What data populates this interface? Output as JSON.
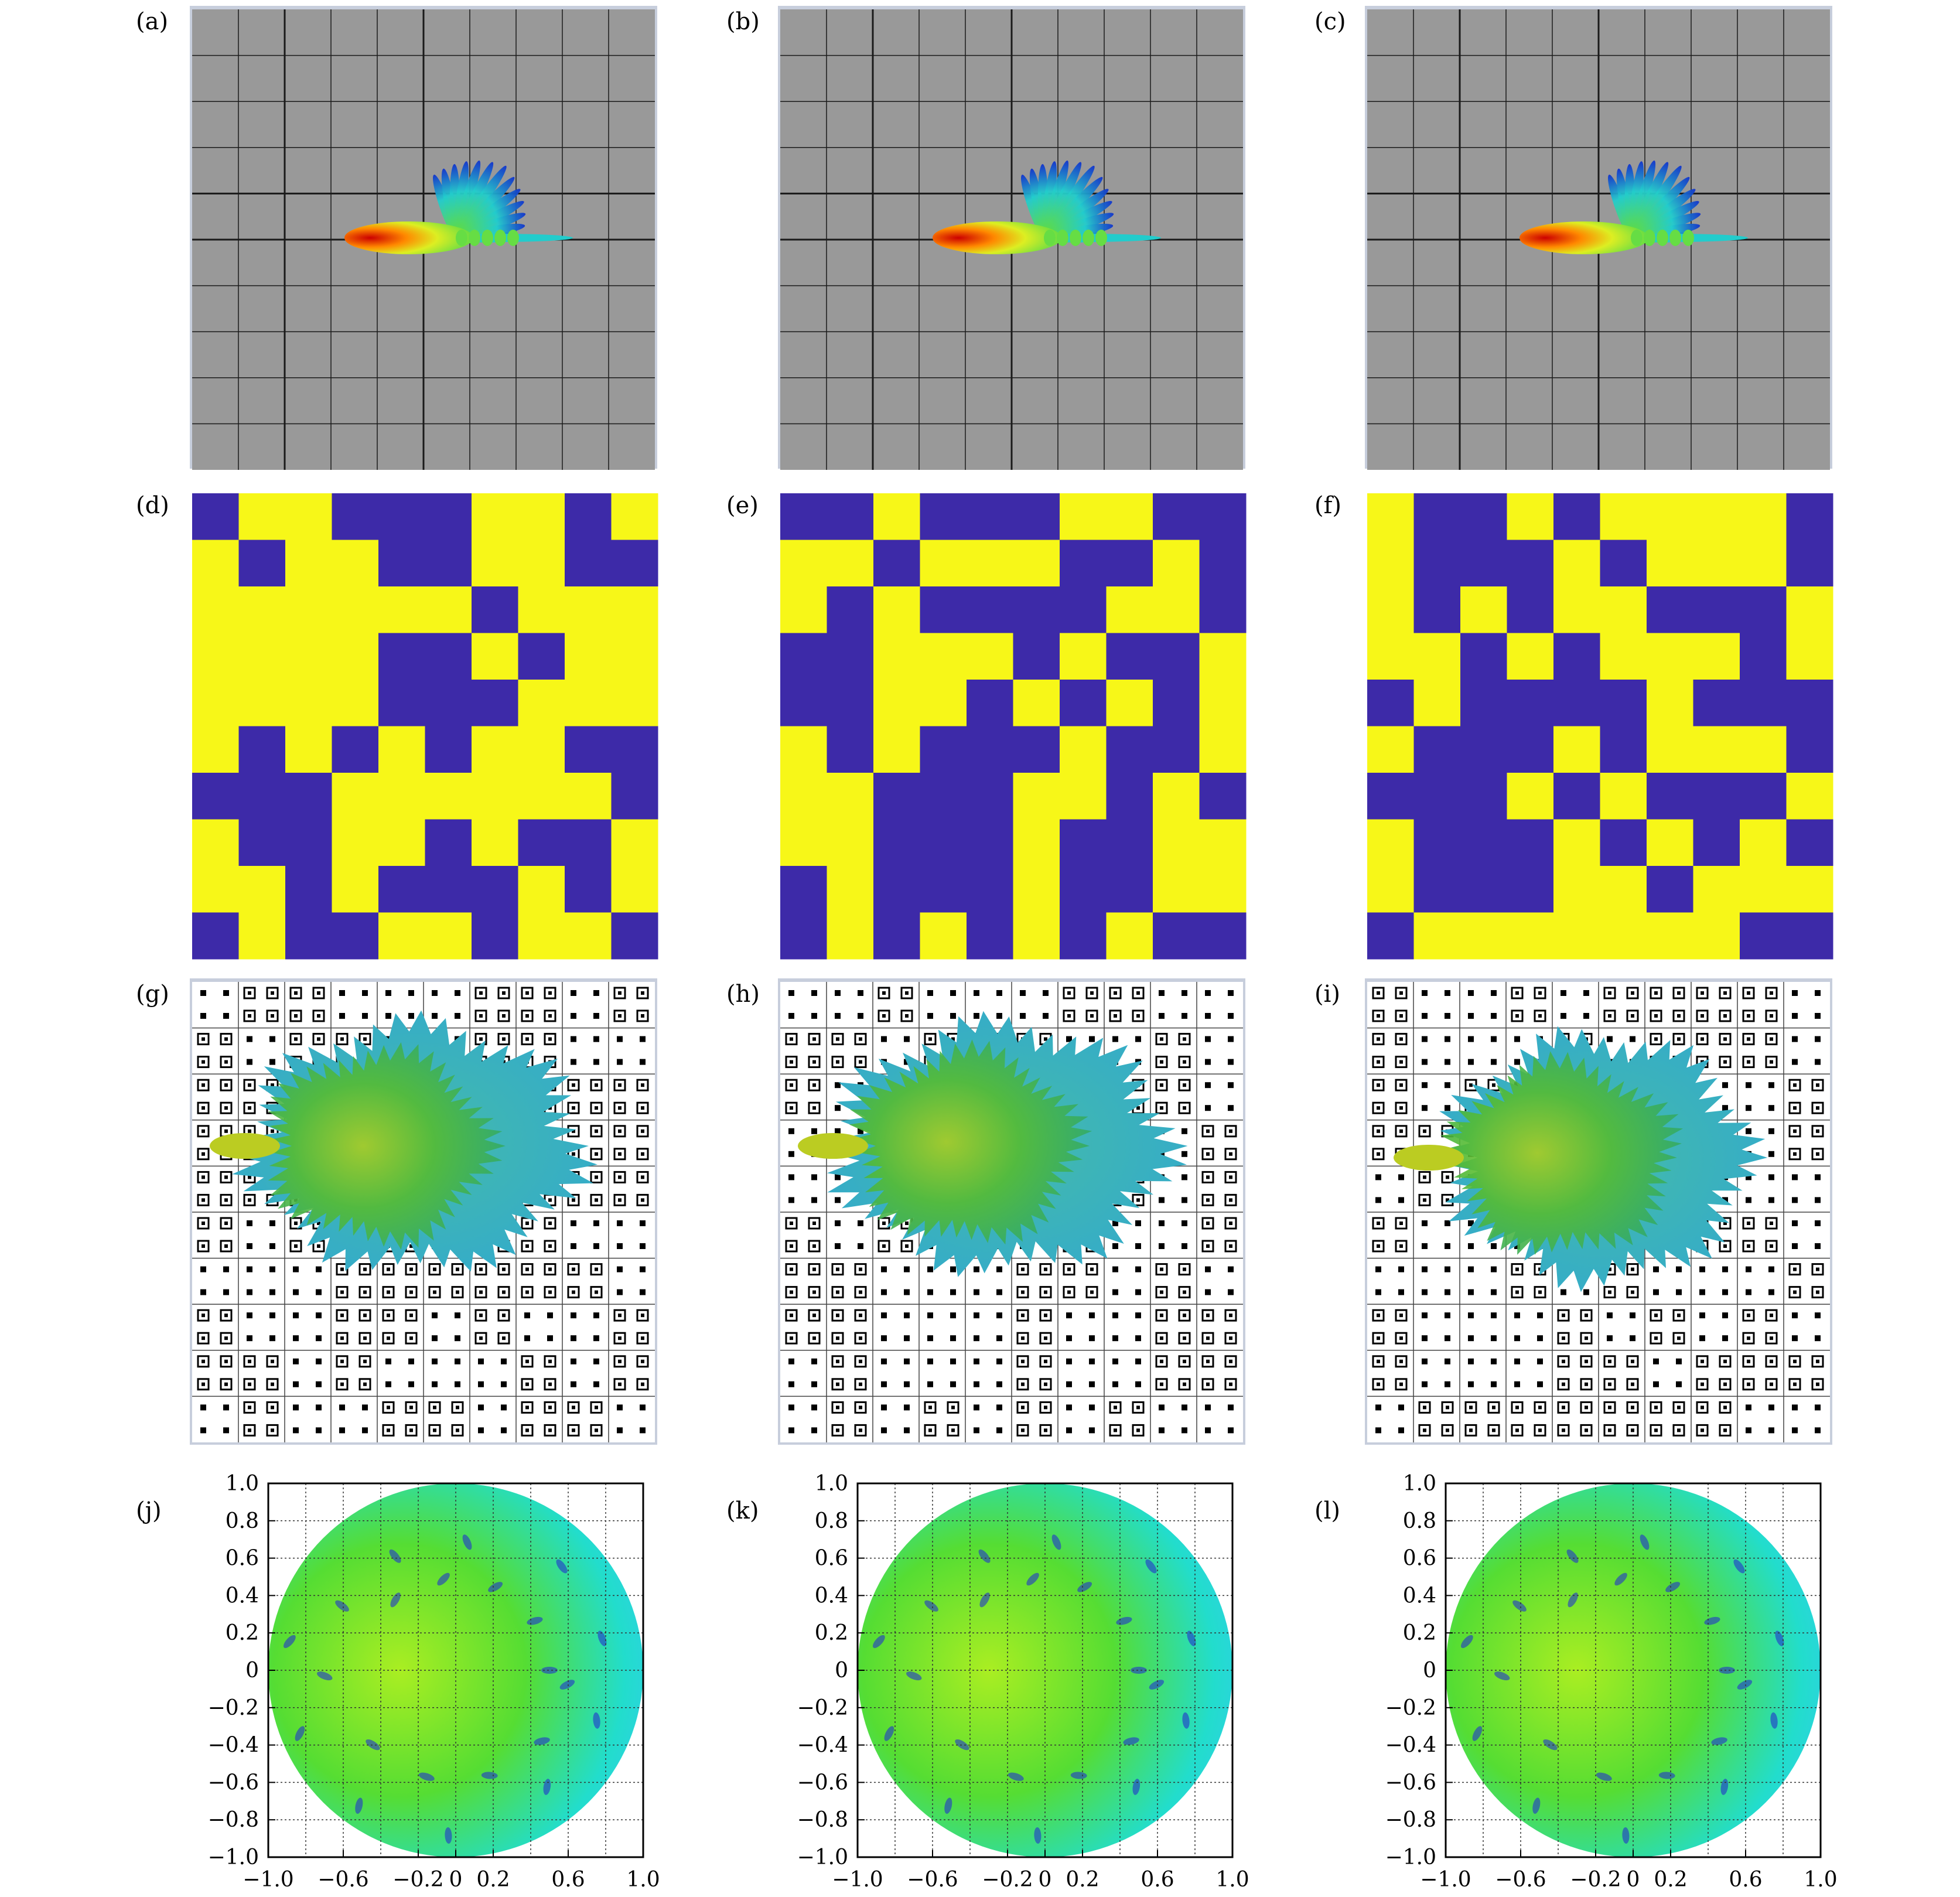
{
  "panel_labels": [
    "(a)",
    "(b)",
    "(c)",
    "(d)",
    "(e)",
    "(f)",
    "(g)",
    "(h)",
    "(i)",
    "(j)",
    "(k)",
    "(l)"
  ],
  "colors": {
    "plate_bg": "#999999",
    "grid_line": "#1a1a1a",
    "code_on": "#f7f718",
    "code_off": "#3d2aa8",
    "pattern_hot": "#dd1a00",
    "pattern_cold": "#00cccc",
    "scatter_green": "#33cc33",
    "scatter_cyan": "#22ddee"
  },
  "coding_matrices": {
    "d": [
      "0110001101",
      "1011001100",
      "1111110111",
      "1111001011",
      "1111000111",
      "1010101100",
      "0001111110",
      "1001101001",
      "1101000101",
      "0100110110"
    ],
    "e": [
      "0010001100",
      "1101110010",
      "1010000110",
      "0011101001",
      "0011010101",
      "1010001001",
      "1100011010",
      "1100010011",
      "0100010011",
      "0101010100"
    ],
    "f": [
      "1001011110",
      "1000101110",
      "1010110001",
      "1101011101",
      "0100001000",
      "1000101110",
      "0001010001",
      "1000101010",
      "1000110111",
      "0111111100"
    ]
  },
  "polar_plots": {
    "x_ticks": [
      "−1.0",
      "−0.6",
      "−0.2",
      "0",
      "0.2",
      "0.6",
      "1.0"
    ],
    "y_ticks": [
      "1.0",
      "0.8",
      "0.6",
      "0.4",
      "0.2",
      "0",
      "−0.2",
      "−0.4",
      "−0.6",
      "−0.8",
      "−1.0"
    ]
  }
}
